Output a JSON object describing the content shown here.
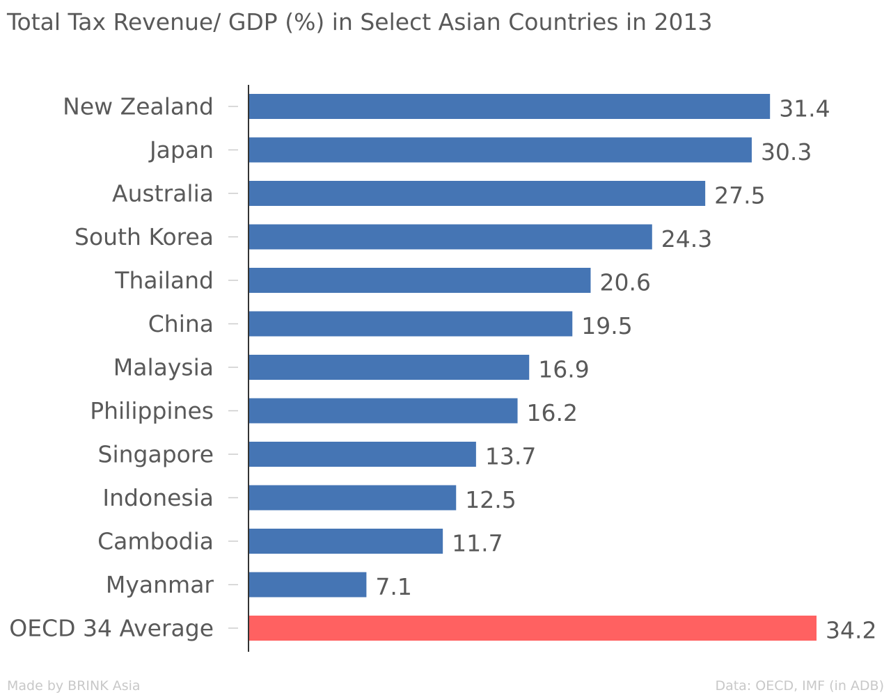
{
  "title": "Total Tax Revenue/ GDP (%) in Select Asian Countries in 2013",
  "footer": {
    "credit": "Made by BRINK Asia",
    "source": "Data: OECD, IMF (in ADB)"
  },
  "colors": {
    "default_bar": "#4575b4",
    "highlight_bar": "#ff6161",
    "text": "#595959",
    "axis": "#333333",
    "tick": "#cccccc",
    "footer": "#c8c8c8"
  },
  "chart_data": {
    "type": "bar",
    "orientation": "horizontal",
    "title": "Total Tax Revenue/ GDP (%) in Select Asian Countries in 2013",
    "xlabel": "",
    "ylabel": "",
    "categories": [
      "New Zealand",
      "Japan",
      "Australia",
      "South Korea",
      "Thailand",
      "China",
      "Malaysia",
      "Philippines",
      "Singapore",
      "Indonesia",
      "Cambodia",
      "Myanmar",
      "OECD 34 Average"
    ],
    "values": [
      31.4,
      30.3,
      27.5,
      24.3,
      20.6,
      19.5,
      16.9,
      16.2,
      13.7,
      12.5,
      11.7,
      7.1,
      34.2
    ],
    "data_labels": [
      "31.4",
      "30.3",
      "27.5",
      "24.3",
      "20.6",
      "19.5",
      "16.9",
      "16.2",
      "13.7",
      "12.5",
      "11.7",
      "7.1",
      "34.2"
    ],
    "highlighted": [
      "OECD 34 Average"
    ],
    "xlim": [
      0,
      34.2
    ],
    "grid": false,
    "legend": "none"
  }
}
